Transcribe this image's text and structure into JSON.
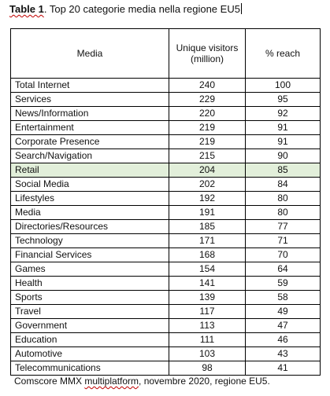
{
  "caption": {
    "label": "Table 1",
    "text": ". Top 20 categorie media nella regione EU5"
  },
  "table": {
    "headers": [
      "Media",
      "Unique visitors (million)",
      "% reach"
    ],
    "highlight_row": "Retail",
    "highlight_color": "#e2efda",
    "rows": [
      {
        "media": "Total Internet",
        "visitors": "240",
        "reach": "100"
      },
      {
        "media": "Services",
        "visitors": "229",
        "reach": "95"
      },
      {
        "media": "News/Information",
        "visitors": "220",
        "reach": "92"
      },
      {
        "media": "Entertainment",
        "visitors": "219",
        "reach": "91"
      },
      {
        "media": "Corporate Presence",
        "visitors": "219",
        "reach": "91"
      },
      {
        "media": "Search/Navigation",
        "visitors": "215",
        "reach": "90"
      },
      {
        "media": "Retail",
        "visitors": "204",
        "reach": "85"
      },
      {
        "media": "Social Media",
        "visitors": "202",
        "reach": "84"
      },
      {
        "media": "Lifestyles",
        "visitors": "192",
        "reach": "80"
      },
      {
        "media": "Media",
        "visitors": "191",
        "reach": "80"
      },
      {
        "media": "Directories/Resources",
        "visitors": "185",
        "reach": "77"
      },
      {
        "media": "Technology",
        "visitors": "171",
        "reach": "71"
      },
      {
        "media": "Financial Services",
        "visitors": "168",
        "reach": "70"
      },
      {
        "media": "Games",
        "visitors": "154",
        "reach": "64"
      },
      {
        "media": "Health",
        "visitors": "141",
        "reach": "59"
      },
      {
        "media": "Sports",
        "visitors": "139",
        "reach": "58"
      },
      {
        "media": "Travel",
        "visitors": "117",
        "reach": "49"
      },
      {
        "media": "Government",
        "visitors": "113",
        "reach": "47"
      },
      {
        "media": "Education",
        "visitors": "111",
        "reach": "46"
      },
      {
        "media": "Automotive",
        "visitors": "103",
        "reach": "43"
      },
      {
        "media": "Telecommunications",
        "visitors": "98",
        "reach": "41"
      }
    ]
  },
  "source": {
    "part1": "Comscore MMX ",
    "part2": "multiplatform",
    "part3": ", novembre 2020, regione EU5."
  }
}
